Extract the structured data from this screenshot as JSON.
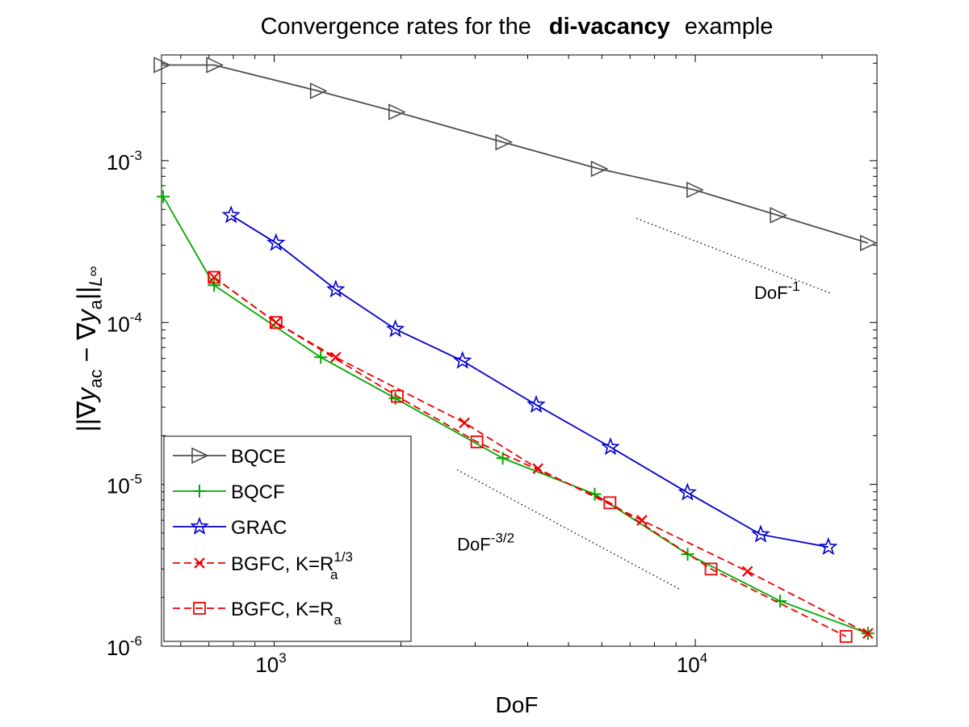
{
  "chart_data": {
    "type": "line",
    "title_prefix": "Convergence rates for the",
    "title_bold": "di-vacancy",
    "title_suffix": "example",
    "xlabel": "DoF",
    "ylabel": "||∇y_ac − ∇y_a||_L∞",
    "xscale": "log",
    "yscale": "log",
    "xlim": [
      540,
      27000
    ],
    "ylim": [
      1e-06,
      0.0045
    ],
    "xticks": [
      {
        "value": 1000,
        "base": "10",
        "exp": "3"
      },
      {
        "value": 10000,
        "base": "10",
        "exp": "4"
      }
    ],
    "yticks": [
      {
        "value": 1e-06,
        "base": "10",
        "exp": "-6"
      },
      {
        "value": 1e-05,
        "base": "10",
        "exp": "-5"
      },
      {
        "value": 0.0001,
        "base": "10",
        "exp": "-4"
      },
      {
        "value": 0.001,
        "base": "10",
        "exp": "-3"
      }
    ],
    "legend_position": "bottom-left",
    "series": [
      {
        "name": "BQCE",
        "color": "#4d4d4d",
        "dash": "solid",
        "marker": "triangle-right",
        "x": [
          540,
          720,
          1270,
          1950,
          3500,
          5900,
          9950,
          15700,
          25700
        ],
        "y": [
          0.0039,
          0.0039,
          0.0027,
          0.002,
          0.0013,
          0.00089,
          0.00066,
          0.00046,
          0.00031
        ]
      },
      {
        "name": "BQCF",
        "color": "#00aa00",
        "dash": "solid",
        "marker": "plus",
        "x": [
          545,
          720,
          1290,
          1940,
          3490,
          5770,
          9590,
          15900,
          25700
        ],
        "y": [
          0.0006,
          0.00017,
          6.1e-05,
          3.4e-05,
          1.45e-05,
          8.7e-06,
          3.7e-06,
          1.9e-06,
          1.2e-06
        ]
      },
      {
        "name": "GRAC",
        "color": "#0000cc",
        "dash": "solid",
        "marker": "star",
        "x": [
          790,
          1010,
          1400,
          1940,
          2800,
          4190,
          6290,
          9580,
          14300,
          20700
        ],
        "y": [
          0.00046,
          0.00031,
          0.00016,
          9.1e-05,
          5.8e-05,
          3.1e-05,
          1.7e-05,
          8.9e-06,
          4.9e-06,
          4.1e-06
        ]
      },
      {
        "name": "BGFC, K=R",
        "sub": "a",
        "sup": "1/3",
        "color": "#ee0000",
        "dash": "dashed",
        "marker": "x",
        "x": [
          720,
          1010,
          1400,
          2830,
          4230,
          7470,
          13300,
          25700
        ],
        "y": [
          0.00019,
          0.0001,
          6.1e-05,
          2.4e-05,
          1.25e-05,
          6e-06,
          2.9e-06,
          1.2e-06
        ]
      },
      {
        "name": "BGFC, K=R",
        "sub": "a",
        "sup": "",
        "color": "#ee0000",
        "dash": "dashed",
        "marker": "square",
        "x": [
          720,
          1010,
          1960,
          3030,
          6270,
          10900,
          22800
        ],
        "y": [
          0.00019,
          0.0001,
          3.5e-05,
          1.83e-05,
          7.7e-06,
          3e-06,
          1.15e-06
        ]
      }
    ],
    "reference_lines": [
      {
        "label": "DoF",
        "exp": "-1",
        "x": [
          7250,
          20900
        ],
        "y": [
          0.00044,
          0.000152
        ],
        "label_at": {
          "x": 13800,
          "y": 0.00014
        }
      },
      {
        "label": "DoF",
        "exp": "-3/2",
        "x": [
          2720,
          9180
        ],
        "y": [
          1.23e-05,
          2.25e-06
        ],
        "label_at": {
          "x": 2720,
          "y": 3.9e-06
        }
      }
    ]
  }
}
